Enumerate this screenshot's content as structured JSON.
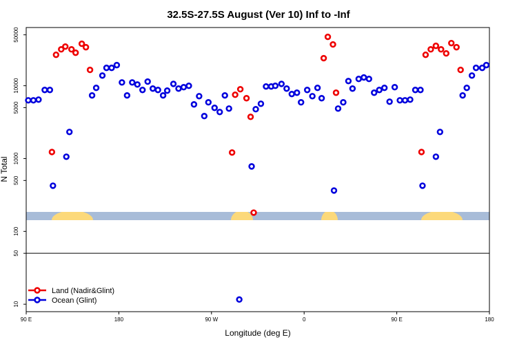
{
  "chart_data": {
    "type": "scatter",
    "title": "32.5S-27.5S August (Ver 10)   Inf to -Inf",
    "x_label": "Longitude (deg E)",
    "y_label": "N Total",
    "log_y": true,
    "legend": "bottom-left",
    "hline": 50,
    "xlim": [
      90,
      540
    ],
    "ylim": [
      7.9,
      63000
    ],
    "xticks": [
      {
        "value": 90,
        "label": "90 E"
      },
      180,
      {
        "value": 270,
        "label": "90 W"
      },
      {
        "value": 360,
        "label": "0"
      },
      {
        "value": 450,
        "label": "90 E"
      },
      {
        "value": 540,
        "label": "180"
      }
    ],
    "yticks": [
      10,
      50,
      100,
      500,
      1000,
      5000,
      10000,
      50000
    ],
    "series": [
      {
        "name": "Land (Nadir&Glint)",
        "color": "#ee0000",
        "x": [
          115,
          119,
          124,
          128,
          134,
          138,
          144,
          148,
          152,
          290,
          293,
          298,
          304,
          308,
          311,
          379,
          383,
          388,
          391,
          474,
          478,
          483,
          488,
          493,
          498,
          503,
          508,
          512
        ],
        "values": [
          1230,
          26600,
          31600,
          34500,
          31600,
          28400,
          37700,
          33800,
          16500,
          1210,
          7520,
          8950,
          6740,
          3740,
          181,
          23900,
          46900,
          36900,
          8020,
          1230,
          26600,
          31600,
          35300,
          31600,
          27800,
          38500,
          33800,
          16500
        ]
      },
      {
        "name": "Ocean (Glint)",
        "color": "#0000dd",
        "x": [
          92,
          97,
          102,
          108,
          113,
          116,
          129,
          132,
          154,
          158,
          164,
          168,
          173,
          178,
          183,
          188,
          193,
          198,
          203,
          208,
          213,
          218,
          223,
          227,
          233,
          238,
          243,
          248,
          253,
          258,
          263,
          267,
          273,
          278,
          283,
          287,
          297,
          309,
          313,
          318,
          323,
          328,
          332,
          338,
          343,
          348,
          353,
          357,
          363,
          368,
          373,
          377,
          389,
          393,
          398,
          403,
          407,
          413,
          418,
          423,
          428,
          433,
          438,
          443,
          448,
          453,
          458,
          463,
          468,
          473,
          475,
          488,
          492,
          514,
          518,
          523,
          527,
          533,
          537
        ],
        "values": [
          6310,
          6310,
          6450,
          8750,
          8750,
          424,
          1060,
          2320,
          7360,
          9350,
          13800,
          17600,
          17600,
          19200,
          11100,
          7360,
          11100,
          10400,
          8750,
          11400,
          9140,
          8750,
          7360,
          8570,
          10600,
          9140,
          9550,
          9980,
          5540,
          7190,
          3830,
          5920,
          4970,
          4360,
          7360,
          4860,
          11.6,
          780,
          4760,
          5660,
          9770,
          9770,
          9980,
          10600,
          9140,
          7690,
          8020,
          5920,
          8750,
          7190,
          9350,
          6740,
          364,
          4860,
          5920,
          11600,
          9140,
          12400,
          13000,
          12400,
          8020,
          8750,
          9350,
          6040,
          9550,
          6310,
          6310,
          6450,
          8750,
          8750,
          424,
          1060,
          2320,
          7360,
          9350,
          13800,
          17600,
          17600,
          19200
        ]
      }
    ]
  }
}
